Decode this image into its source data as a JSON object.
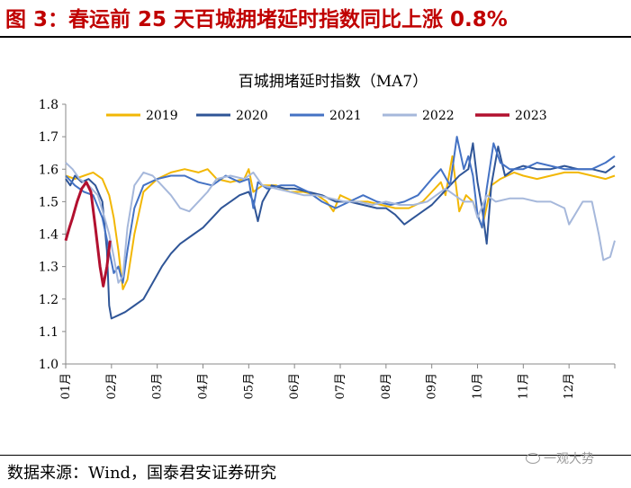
{
  "header": {
    "figure_title": "图 3：春运前 25 天百城拥堵延时指数同比上涨 0.8%"
  },
  "footer": {
    "source": "数据来源：Wind，国泰君安证券研究",
    "watermark": "一观大势"
  },
  "chart_data": {
    "type": "line",
    "title": "百城拥堵延时指数（MA7）",
    "xlabel": "",
    "ylabel": "",
    "ylim": [
      1.0,
      1.8
    ],
    "yticks": [
      "1.0",
      "1.1",
      "1.2",
      "1.3",
      "1.4",
      "1.5",
      "1.6",
      "1.7",
      "1.8"
    ],
    "xticks": [
      "01月",
      "02月",
      "03月",
      "04月",
      "05月",
      "06月",
      "07月",
      "08月",
      "09月",
      "10月",
      "11月",
      "12月"
    ],
    "xlim": [
      1,
      13
    ],
    "legend_position": "top",
    "grid": false,
    "series": [
      {
        "name": "2019",
        "color": "#f2b705",
        "points": [
          [
            1.0,
            1.58
          ],
          [
            1.2,
            1.57
          ],
          [
            1.4,
            1.58
          ],
          [
            1.6,
            1.59
          ],
          [
            1.8,
            1.57
          ],
          [
            1.95,
            1.52
          ],
          [
            2.05,
            1.45
          ],
          [
            2.15,
            1.35
          ],
          [
            2.25,
            1.23
          ],
          [
            2.35,
            1.26
          ],
          [
            2.5,
            1.4
          ],
          [
            2.7,
            1.53
          ],
          [
            3.0,
            1.57
          ],
          [
            3.3,
            1.59
          ],
          [
            3.6,
            1.6
          ],
          [
            3.9,
            1.59
          ],
          [
            4.1,
            1.6
          ],
          [
            4.3,
            1.57
          ],
          [
            4.6,
            1.56
          ],
          [
            4.9,
            1.57
          ],
          [
            5.0,
            1.6
          ],
          [
            5.1,
            1.53
          ],
          [
            5.3,
            1.55
          ],
          [
            5.6,
            1.55
          ],
          [
            5.9,
            1.53
          ],
          [
            6.2,
            1.53
          ],
          [
            6.5,
            1.52
          ],
          [
            6.7,
            1.5
          ],
          [
            6.85,
            1.47
          ],
          [
            7.0,
            1.52
          ],
          [
            7.3,
            1.5
          ],
          [
            7.6,
            1.5
          ],
          [
            7.9,
            1.49
          ],
          [
            8.2,
            1.48
          ],
          [
            8.5,
            1.48
          ],
          [
            8.8,
            1.5
          ],
          [
            9.0,
            1.53
          ],
          [
            9.2,
            1.56
          ],
          [
            9.3,
            1.52
          ],
          [
            9.45,
            1.64
          ],
          [
            9.6,
            1.47
          ],
          [
            9.75,
            1.52
          ],
          [
            9.9,
            1.5
          ],
          [
            10.1,
            1.42
          ],
          [
            10.3,
            1.55
          ],
          [
            10.5,
            1.57
          ],
          [
            10.8,
            1.59
          ],
          [
            11.0,
            1.58
          ],
          [
            11.3,
            1.57
          ],
          [
            11.6,
            1.58
          ],
          [
            11.9,
            1.59
          ],
          [
            12.2,
            1.59
          ],
          [
            12.5,
            1.58
          ],
          [
            12.8,
            1.57
          ],
          [
            13.0,
            1.58
          ]
        ]
      },
      {
        "name": "2020",
        "color": "#2f5597",
        "points": [
          [
            1.0,
            1.57
          ],
          [
            1.1,
            1.55
          ],
          [
            1.2,
            1.58
          ],
          [
            1.35,
            1.56
          ],
          [
            1.5,
            1.57
          ],
          [
            1.65,
            1.55
          ],
          [
            1.8,
            1.5
          ],
          [
            1.9,
            1.35
          ],
          [
            1.95,
            1.18
          ],
          [
            2.0,
            1.14
          ],
          [
            2.15,
            1.15
          ],
          [
            2.3,
            1.16
          ],
          [
            2.5,
            1.18
          ],
          [
            2.7,
            1.2
          ],
          [
            2.9,
            1.25
          ],
          [
            3.1,
            1.3
          ],
          [
            3.3,
            1.34
          ],
          [
            3.5,
            1.37
          ],
          [
            3.8,
            1.4
          ],
          [
            4.0,
            1.42
          ],
          [
            4.2,
            1.45
          ],
          [
            4.4,
            1.48
          ],
          [
            4.6,
            1.5
          ],
          [
            4.8,
            1.52
          ],
          [
            5.0,
            1.53
          ],
          [
            5.1,
            1.5
          ],
          [
            5.2,
            1.44
          ],
          [
            5.3,
            1.5
          ],
          [
            5.5,
            1.55
          ],
          [
            5.8,
            1.54
          ],
          [
            6.0,
            1.54
          ],
          [
            6.3,
            1.53
          ],
          [
            6.6,
            1.52
          ],
          [
            6.9,
            1.5
          ],
          [
            7.2,
            1.5
          ],
          [
            7.5,
            1.49
          ],
          [
            7.8,
            1.48
          ],
          [
            8.0,
            1.48
          ],
          [
            8.2,
            1.46
          ],
          [
            8.4,
            1.43
          ],
          [
            8.6,
            1.45
          ],
          [
            8.8,
            1.47
          ],
          [
            9.0,
            1.49
          ],
          [
            9.2,
            1.52
          ],
          [
            9.4,
            1.55
          ],
          [
            9.6,
            1.58
          ],
          [
            9.8,
            1.6
          ],
          [
            9.9,
            1.68
          ],
          [
            10.0,
            1.56
          ],
          [
            10.1,
            1.48
          ],
          [
            10.2,
            1.37
          ],
          [
            10.3,
            1.55
          ],
          [
            10.45,
            1.67
          ],
          [
            10.6,
            1.58
          ],
          [
            10.8,
            1.6
          ],
          [
            11.0,
            1.61
          ],
          [
            11.3,
            1.6
          ],
          [
            11.6,
            1.6
          ],
          [
            11.9,
            1.61
          ],
          [
            12.2,
            1.6
          ],
          [
            12.5,
            1.6
          ],
          [
            12.8,
            1.59
          ],
          [
            13.0,
            1.61
          ]
        ]
      },
      {
        "name": "2021",
        "color": "#4472c4",
        "points": [
          [
            1.0,
            1.58
          ],
          [
            1.2,
            1.55
          ],
          [
            1.4,
            1.53
          ],
          [
            1.6,
            1.52
          ],
          [
            1.8,
            1.45
          ],
          [
            1.95,
            1.35
          ],
          [
            2.05,
            1.28
          ],
          [
            2.15,
            1.3
          ],
          [
            2.25,
            1.25
          ],
          [
            2.35,
            1.35
          ],
          [
            2.5,
            1.48
          ],
          [
            2.7,
            1.55
          ],
          [
            3.0,
            1.57
          ],
          [
            3.3,
            1.58
          ],
          [
            3.6,
            1.58
          ],
          [
            3.9,
            1.56
          ],
          [
            4.2,
            1.55
          ],
          [
            4.5,
            1.58
          ],
          [
            4.8,
            1.56
          ],
          [
            5.0,
            1.57
          ],
          [
            5.1,
            1.48
          ],
          [
            5.2,
            1.56
          ],
          [
            5.4,
            1.54
          ],
          [
            5.7,
            1.55
          ],
          [
            6.0,
            1.55
          ],
          [
            6.3,
            1.53
          ],
          [
            6.6,
            1.5
          ],
          [
            6.9,
            1.48
          ],
          [
            7.2,
            1.5
          ],
          [
            7.5,
            1.52
          ],
          [
            7.8,
            1.5
          ],
          [
            8.1,
            1.49
          ],
          [
            8.4,
            1.5
          ],
          [
            8.7,
            1.52
          ],
          [
            9.0,
            1.57
          ],
          [
            9.2,
            1.6
          ],
          [
            9.4,
            1.55
          ],
          [
            9.55,
            1.7
          ],
          [
            9.7,
            1.6
          ],
          [
            9.8,
            1.64
          ],
          [
            9.9,
            1.58
          ],
          [
            10.0,
            1.46
          ],
          [
            10.1,
            1.42
          ],
          [
            10.2,
            1.54
          ],
          [
            10.35,
            1.68
          ],
          [
            10.5,
            1.62
          ],
          [
            10.7,
            1.6
          ],
          [
            11.0,
            1.6
          ],
          [
            11.3,
            1.62
          ],
          [
            11.6,
            1.61
          ],
          [
            11.9,
            1.6
          ],
          [
            12.2,
            1.6
          ],
          [
            12.5,
            1.6
          ],
          [
            12.8,
            1.62
          ],
          [
            13.0,
            1.64
          ]
        ]
      },
      {
        "name": "2022",
        "color": "#a6b8db",
        "points": [
          [
            1.0,
            1.62
          ],
          [
            1.15,
            1.6
          ],
          [
            1.3,
            1.57
          ],
          [
            1.5,
            1.55
          ],
          [
            1.7,
            1.52
          ],
          [
            1.85,
            1.45
          ],
          [
            1.95,
            1.4
          ],
          [
            2.05,
            1.33
          ],
          [
            2.15,
            1.25
          ],
          [
            2.25,
            1.27
          ],
          [
            2.35,
            1.42
          ],
          [
            2.5,
            1.55
          ],
          [
            2.7,
            1.59
          ],
          [
            2.9,
            1.58
          ],
          [
            3.1,
            1.55
          ],
          [
            3.3,
            1.52
          ],
          [
            3.5,
            1.48
          ],
          [
            3.7,
            1.47
          ],
          [
            3.9,
            1.5
          ],
          [
            4.1,
            1.53
          ],
          [
            4.3,
            1.57
          ],
          [
            4.6,
            1.58
          ],
          [
            4.9,
            1.57
          ],
          [
            5.1,
            1.59
          ],
          [
            5.3,
            1.55
          ],
          [
            5.6,
            1.54
          ],
          [
            5.9,
            1.53
          ],
          [
            6.2,
            1.52
          ],
          [
            6.5,
            1.52
          ],
          [
            6.8,
            1.51
          ],
          [
            7.1,
            1.5
          ],
          [
            7.4,
            1.5
          ],
          [
            7.7,
            1.49
          ],
          [
            8.0,
            1.5
          ],
          [
            8.3,
            1.49
          ],
          [
            8.6,
            1.49
          ],
          [
            8.9,
            1.5
          ],
          [
            9.1,
            1.52
          ],
          [
            9.3,
            1.54
          ],
          [
            9.5,
            1.52
          ],
          [
            9.7,
            1.5
          ],
          [
            9.9,
            1.5
          ],
          [
            10.0,
            1.45
          ],
          [
            10.2,
            1.52
          ],
          [
            10.4,
            1.5
          ],
          [
            10.7,
            1.51
          ],
          [
            11.0,
            1.51
          ],
          [
            11.3,
            1.5
          ],
          [
            11.6,
            1.5
          ],
          [
            11.9,
            1.48
          ],
          [
            12.0,
            1.43
          ],
          [
            12.3,
            1.5
          ],
          [
            12.5,
            1.5
          ],
          [
            12.65,
            1.4
          ],
          [
            12.75,
            1.32
          ],
          [
            12.9,
            1.33
          ],
          [
            13.0,
            1.38
          ]
        ]
      },
      {
        "name": "2023",
        "color": "#b2102f",
        "points": [
          [
            1.0,
            1.38
          ],
          [
            1.08,
            1.42
          ],
          [
            1.15,
            1.45
          ],
          [
            1.25,
            1.5
          ],
          [
            1.35,
            1.54
          ],
          [
            1.45,
            1.56
          ],
          [
            1.55,
            1.53
          ],
          [
            1.65,
            1.42
          ],
          [
            1.75,
            1.3
          ],
          [
            1.82,
            1.24
          ],
          [
            1.9,
            1.3
          ],
          [
            1.97,
            1.38
          ]
        ]
      }
    ]
  }
}
